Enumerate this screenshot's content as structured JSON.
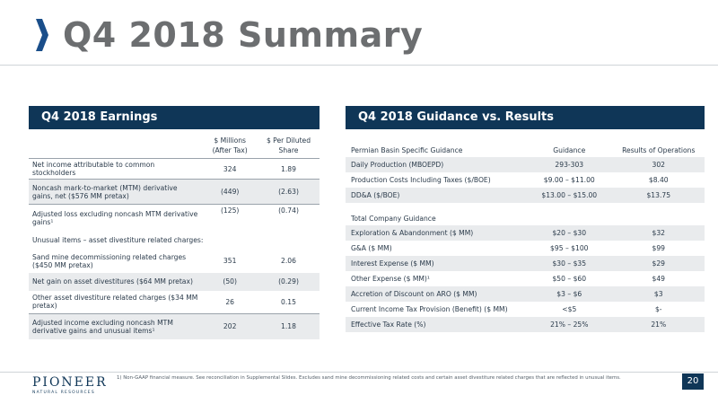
{
  "title": "Q4 2018 Summary",
  "colors": {
    "navy": "#0f3657",
    "title_gray": "#6c6e70",
    "accent": "#1a4e8a"
  },
  "earnings": {
    "heading": "Q4 2018 Earnings",
    "col_millions_1": "$ Millions",
    "col_millions_2": "(After Tax)",
    "col_pershare_1": "$ Per Diluted",
    "col_pershare_2": "Share",
    "rows": [
      {
        "label": "Net income attributable to common stockholders",
        "millions": "324",
        "per_share": "1.89"
      },
      {
        "label": "Noncash mark-to-market (MTM) derivative gains, net ($576 MM pretax)",
        "millions": "(449)",
        "per_share": "(2.63)"
      },
      {
        "label": "Adjusted loss excluding noncash MTM derivative gains¹",
        "millions": "(125)",
        "per_share": "(0.74)"
      },
      {
        "label": "Unusual items – asset divestiture related charges:",
        "millions": "",
        "per_share": ""
      },
      {
        "label": "Sand mine decommissioning related charges ($450 MM pretax)",
        "millions": "351",
        "per_share": "2.06"
      },
      {
        "label": "Net gain on asset divestitures ($64 MM pretax)",
        "millions": "(50)",
        "per_share": "(0.29)"
      },
      {
        "label": "Other asset divestiture related charges ($34 MM pretax)",
        "millions": "26",
        "per_share": "0.15"
      },
      {
        "label": "Adjusted income excluding noncash MTM derivative gains and unusual items¹",
        "millions": "202",
        "per_share": "1.18"
      }
    ]
  },
  "guidance": {
    "heading": "Q4 2018 Guidance vs. Results",
    "col_guidance": "Guidance",
    "col_results": "Results of Operations",
    "permian_header": "Permian Basin Specific Guidance",
    "permian_rows": [
      {
        "label": "Daily Production (MBOEPD)",
        "guidance": "293-303",
        "result": "302"
      },
      {
        "label": "Production Costs Including Taxes ($/BOE)",
        "guidance": "$9.00 – $11.00",
        "result": "$8.40"
      },
      {
        "label": "DD&A ($/BOE)",
        "guidance": "$13.00 – $15.00",
        "result": "$13.75"
      }
    ],
    "company_header": "Total Company Guidance",
    "company_rows": [
      {
        "label": "Exploration & Abandonment ($ MM)",
        "guidance": "$20 – $30",
        "result": "$32"
      },
      {
        "label": "G&A ($ MM)",
        "guidance": "$95 – $100",
        "result": "$99"
      },
      {
        "label": "Interest Expense ($ MM)",
        "guidance": "$30 – $35",
        "result": "$29"
      },
      {
        "label": "Other Expense ($ MM)¹",
        "guidance": "$50 – $60",
        "result": "$49"
      },
      {
        "label": "Accretion of Discount on ARO ($ MM)",
        "guidance": "$3 – $6",
        "result": "$3"
      },
      {
        "label": "Current Income Tax Provision (Benefit) ($ MM)",
        "guidance": "<$5",
        "result": "$-"
      },
      {
        "label": "Effective Tax Rate (%)",
        "guidance": "21% – 25%",
        "result": "21%"
      }
    ]
  },
  "footer": {
    "logo_main": "PIONEER",
    "logo_sub": "NATURAL RESOURCES",
    "footnote": "1) Non-GAAP financial measure.  See reconciliation in Supplemental Slides.  Excludes sand mine decommissioning related costs and certain asset divestiture related charges that are reflected in unusual items.",
    "page_number": "20"
  }
}
